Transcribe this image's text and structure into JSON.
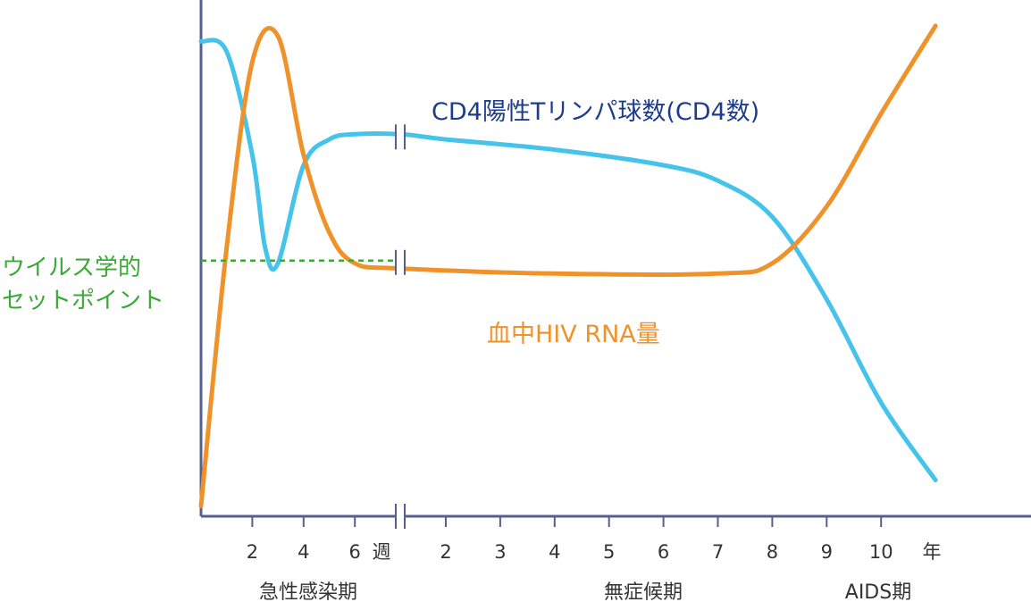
{
  "chart_data": {
    "type": "line",
    "title": "",
    "xlabel": "",
    "ylabel": "",
    "grid": false,
    "axis_color": "#55608f",
    "x_segments": [
      {
        "unit_label": "週",
        "ticks": [
          "2",
          "4",
          "6"
        ],
        "phase_label": "急性感染期"
      },
      {
        "unit_label": "年",
        "ticks": [
          "2",
          "3",
          "4",
          "5",
          "6",
          "7",
          "8",
          "9",
          "10"
        ],
        "phase_labels": [
          "無症候期",
          "AIDS期"
        ]
      }
    ],
    "series": [
      {
        "name": "CD4陽性Tリンパ球数(CD4数)",
        "color": "#45c3ea",
        "label_color": "#1d3c8c",
        "points": [
          {
            "x": "0w",
            "y": 0.92
          },
          {
            "x": "1w",
            "y": 0.9
          },
          {
            "x": "2w",
            "y": 0.7
          },
          {
            "x": "2.5w",
            "y": 0.52
          },
          {
            "x": "3w",
            "y": 0.49
          },
          {
            "x": "4w",
            "y": 0.68
          },
          {
            "x": "5w",
            "y": 0.73
          },
          {
            "x": "6w",
            "y": 0.74
          },
          {
            "x": "1y",
            "y": 0.74
          },
          {
            "x": "2y",
            "y": 0.73
          },
          {
            "x": "4y",
            "y": 0.71
          },
          {
            "x": "6y",
            "y": 0.68
          },
          {
            "x": "7y",
            "y": 0.65
          },
          {
            "x": "8y",
            "y": 0.58
          },
          {
            "x": "9y",
            "y": 0.42
          },
          {
            "x": "10y",
            "y": 0.22
          },
          {
            "x": "11y",
            "y": 0.07
          }
        ]
      },
      {
        "name": "血中HIV RNA量",
        "color": "#f0922a",
        "label_color": "#f0922a",
        "points": [
          {
            "x": "0w",
            "y": 0.02
          },
          {
            "x": "1w",
            "y": 0.52
          },
          {
            "x": "2w",
            "y": 0.88
          },
          {
            "x": "3w",
            "y": 0.93
          },
          {
            "x": "4w",
            "y": 0.7
          },
          {
            "x": "5w",
            "y": 0.55
          },
          {
            "x": "6w",
            "y": 0.49
          },
          {
            "x": "1y",
            "y": 0.48
          },
          {
            "x": "4y",
            "y": 0.47
          },
          {
            "x": "7y",
            "y": 0.47
          },
          {
            "x": "8y",
            "y": 0.49
          },
          {
            "x": "9y",
            "y": 0.6
          },
          {
            "x": "10y",
            "y": 0.78
          },
          {
            "x": "11y",
            "y": 0.95
          }
        ]
      }
    ],
    "annotations": [
      {
        "text_lines": [
          "ウイルス学的",
          "セットポイント"
        ],
        "color": "#3aa935",
        "line_style": "dashed",
        "y": 0.49
      }
    ],
    "axis_break": {
      "symbol": "//"
    }
  }
}
